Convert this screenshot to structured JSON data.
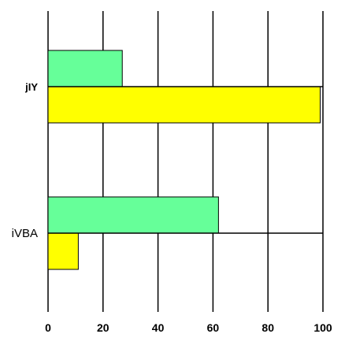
{
  "chart_data": {
    "type": "bar",
    "orientation": "horizontal",
    "categories": [
      "jIY",
      "iVBA"
    ],
    "category_label_bold": [
      true,
      false
    ],
    "series": [
      {
        "color": "#66ff99",
        "values": [
          27,
          62
        ]
      },
      {
        "color": "#ffff00",
        "values": [
          99,
          11
        ]
      }
    ],
    "xlim": [
      0,
      100
    ],
    "xticks": [
      0,
      20,
      40,
      60,
      80,
      100
    ],
    "grid": true,
    "title": "",
    "xlabel": "",
    "ylabel": ""
  }
}
